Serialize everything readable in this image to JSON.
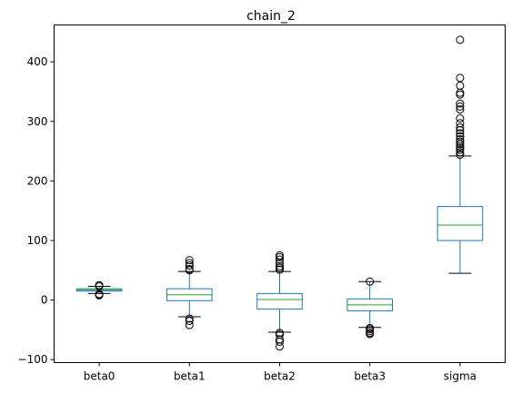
{
  "chart_data": {
    "type": "box",
    "title": "chain_2",
    "xlabel": "",
    "ylabel": "",
    "ylim": [
      -105,
      462
    ],
    "yticks": [
      -100,
      0,
      100,
      200,
      300,
      400
    ],
    "grid": false,
    "colors": {
      "box": "#1f77b4",
      "median": "#2ca02c",
      "whisker": "#1f77b4",
      "cap": "#000000",
      "flier": "#000000",
      "axes": "#000000",
      "background": "#ffffff"
    },
    "categories": [
      "beta0",
      "beta1",
      "beta2",
      "beta3",
      "sigma"
    ],
    "boxes": [
      {
        "name": "beta0",
        "whislo": 11,
        "q1": 15,
        "med": 17,
        "q3": 19,
        "whishi": 23,
        "fliers": [
          8,
          9,
          10,
          23,
          25
        ]
      },
      {
        "name": "beta1",
        "whislo": -28,
        "q1": -1,
        "med": 9,
        "q3": 19,
        "whishi": 48,
        "fliers": [
          -42,
          -35,
          -31,
          50,
          52,
          58,
          62,
          67
        ]
      },
      {
        "name": "beta2",
        "whislo": -54,
        "q1": -15,
        "med": 1,
        "q3": 11,
        "whishi": 48,
        "fliers": [
          -78,
          -70,
          -66,
          -58,
          -55,
          51,
          54,
          57,
          62,
          68,
          72,
          75
        ]
      },
      {
        "name": "beta3",
        "whislo": -46,
        "q1": -18,
        "med": -8,
        "q3": 2,
        "whishi": 31,
        "fliers": [
          -57,
          -55,
          -52,
          -49,
          -47,
          31
        ]
      },
      {
        "name": "sigma",
        "whislo": 45,
        "q1": 100,
        "med": 126,
        "q3": 157,
        "whishi": 242,
        "fliers": [
          244,
          248,
          252,
          255,
          258,
          262,
          266,
          270,
          275,
          280,
          285,
          290,
          297,
          305,
          320,
          325,
          330,
          345,
          348,
          360,
          373,
          437
        ]
      }
    ]
  }
}
